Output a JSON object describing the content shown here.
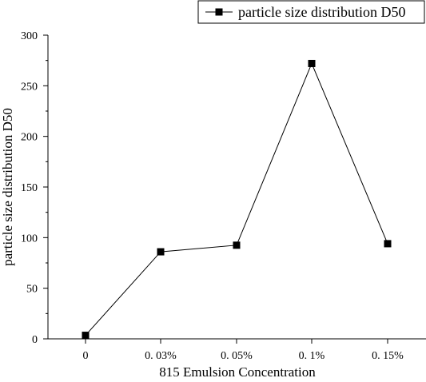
{
  "chart_data": {
    "type": "line",
    "categories": [
      "0",
      "0. 03%",
      "0. 05%",
      "0. 1%",
      "0. 15%"
    ],
    "series": [
      {
        "name": "particle size distribution D50",
        "values": [
          3.5,
          86,
          92.5,
          272,
          94
        ]
      }
    ],
    "xlabel": "815 Emulsion Concentration",
    "ylabel": "particle size distribution D50",
    "ylim": [
      0,
      300
    ],
    "yticks": [
      0,
      50,
      100,
      150,
      200,
      250,
      300
    ],
    "grid": false,
    "legend": "top-right",
    "marker": "square",
    "line_color": "#000000"
  }
}
